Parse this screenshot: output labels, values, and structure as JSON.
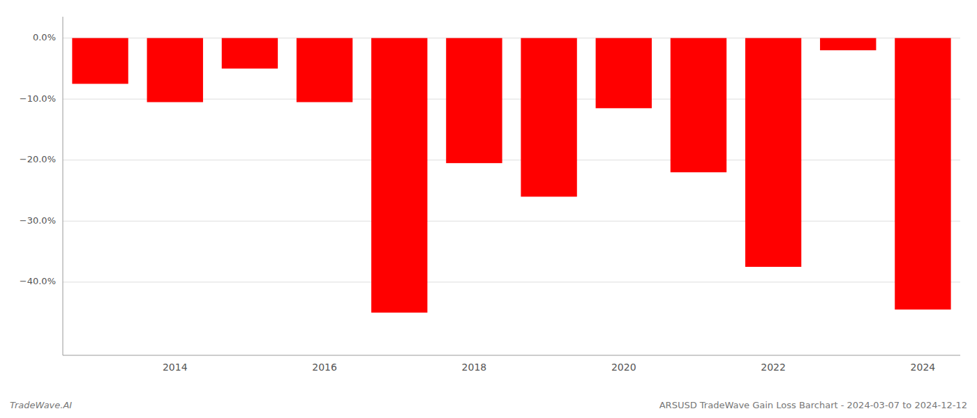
{
  "chart_data": {
    "type": "bar",
    "title": "ARSUSD TradeWave Gain Loss Barchart - 2024-03-07 to 2024-12-12",
    "annotations": [
      "TradeWave.AI"
    ],
    "categories": [
      null,
      "2014",
      null,
      "2016",
      null,
      "2018",
      null,
      "2020",
      null,
      "2022",
      null,
      "2024"
    ],
    "values": [
      -7.5,
      -10.5,
      -5.0,
      -10.5,
      -45.0,
      -20.5,
      -26.0,
      -11.5,
      -22.0,
      -37.5,
      -2.0,
      -44.5
    ],
    "color": "#ff0000",
    "ylim": [
      -52,
      3.5
    ],
    "yticks": [
      {
        "value": 0.0,
        "label": "0.0%"
      },
      {
        "value": -10.0,
        "label": "−10.0%"
      },
      {
        "value": -20.0,
        "label": "−20.0%"
      },
      {
        "value": -30.0,
        "label": "−30.0%"
      },
      {
        "value": -40.0,
        "label": "−40.0%"
      }
    ],
    "grid": true
  }
}
